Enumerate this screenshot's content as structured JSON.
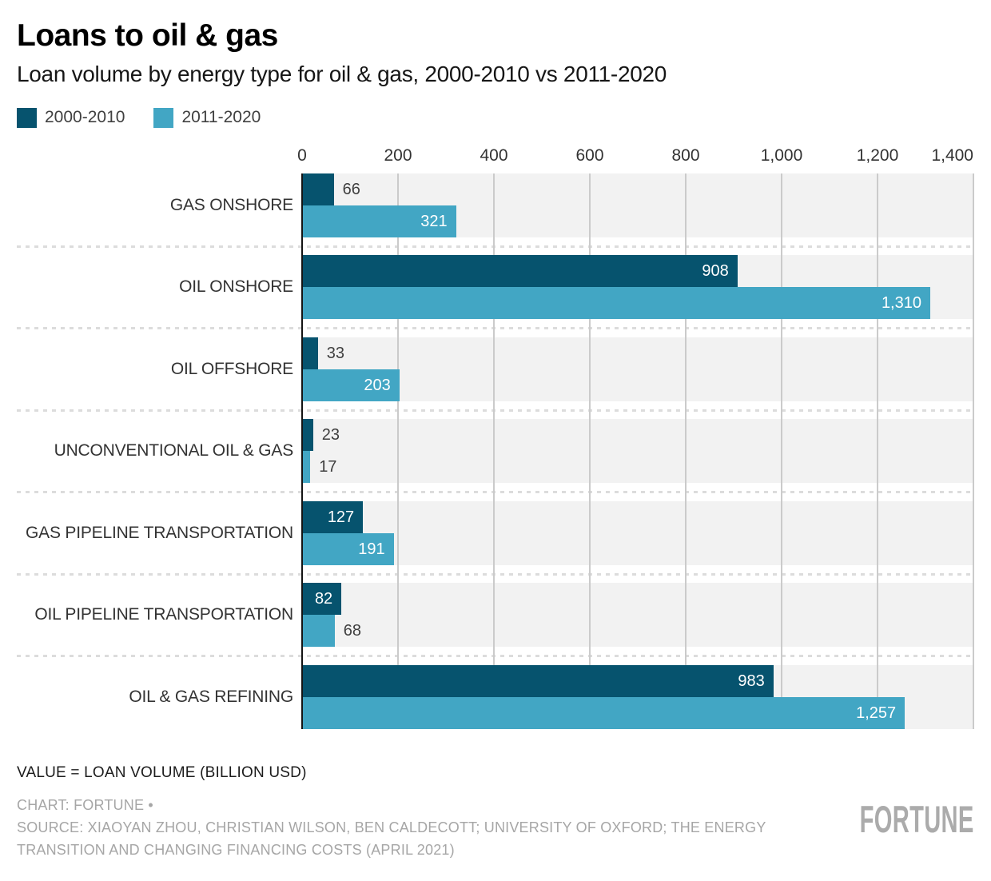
{
  "header": {
    "title": "Loans to oil & gas",
    "subtitle": "Loan volume by energy type for oil & gas, 2000-2010 vs 2011-2020"
  },
  "chart_data": {
    "type": "bar",
    "orientation": "horizontal",
    "title": "Loans to oil & gas",
    "subtitle": "Loan volume by energy type for oil & gas, 2000-2010 vs 2011-2020",
    "categories": [
      "GAS ONSHORE",
      "OIL ONSHORE",
      "OIL OFFSHORE",
      "UNCONVENTIONAL OIL & GAS",
      "GAS PIPELINE TRANSPORTATION",
      "OIL PIPELINE TRANSPORTATION",
      "OIL & GAS REFINING"
    ],
    "series": [
      {
        "name": "2000-2010",
        "color": "#06536e",
        "values": [
          66,
          908,
          33,
          23,
          127,
          82,
          983
        ]
      },
      {
        "name": "2011-2020",
        "color": "#42a6c4",
        "values": [
          321,
          1310,
          203,
          17,
          191,
          68,
          1257
        ]
      }
    ],
    "value_labels": [
      [
        "66",
        "908",
        "33",
        "23",
        "127",
        "82",
        "983"
      ],
      [
        "321",
        "1,310",
        "203",
        "17",
        "191",
        "68",
        "1,257"
      ]
    ],
    "label_inside": [
      [
        false,
        true,
        false,
        false,
        true,
        true,
        true
      ],
      [
        true,
        true,
        true,
        false,
        true,
        false,
        true
      ]
    ],
    "xlim": [
      0,
      1400
    ],
    "x_ticks": [
      "0",
      "200",
      "400",
      "600",
      "800",
      "1,000",
      "1,200",
      "1,400"
    ],
    "grid": "vertical-on",
    "legend_position": "top-left",
    "band_color": "#f2f2f2",
    "gridline_color": "#cbcbcb",
    "axis_line_color": "#141414",
    "inside_label_color": "#ffffff",
    "outside_label_color": "#3f3f3f",
    "units": "BILLION USD"
  },
  "footer": {
    "note": "VALUE = LOAN VOLUME (BILLION USD)",
    "chart_credit": "CHART: FORTUNE •",
    "source_credit": "SOURCE: XIAOYAN ZHOU, CHRISTIAN WILSON, BEN CALDECOTT; UNIVERSITY OF OXFORD; THE ENERGY TRANSITION AND CHANGING FINANCING COSTS (APRIL 2021)",
    "logo": "FORTUNE"
  }
}
